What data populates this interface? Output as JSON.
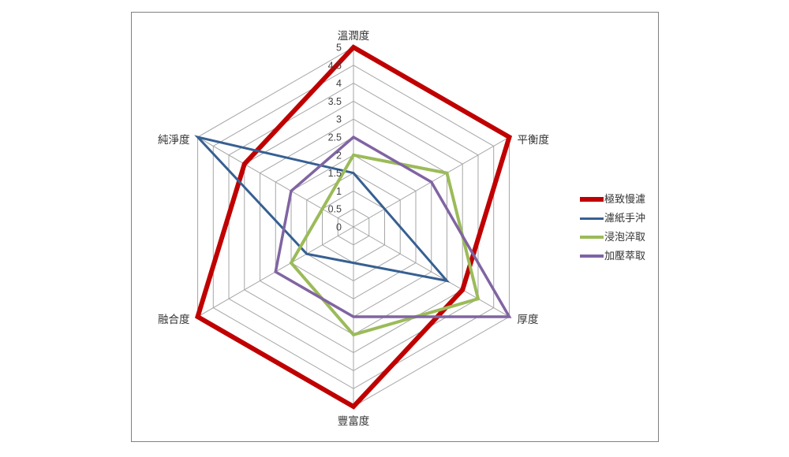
{
  "chart_data": {
    "type": "radar",
    "categories": [
      "溫潤度",
      "平衡度",
      "厚度",
      "豐富度",
      "融合度",
      "純淨度"
    ],
    "axis_min": 0,
    "axis_max": 5,
    "axis_step": 0.5,
    "tick_labels": [
      "0",
      "0.5",
      "1",
      "1.5",
      "2",
      "2.5",
      "3",
      "3.5",
      "4",
      "4.5",
      "5"
    ],
    "series": [
      {
        "name": "極致慢濾",
        "values": [
          5,
          5,
          3.5,
          5,
          5,
          3.5
        ],
        "color": "#C00000",
        "width": 6
      },
      {
        "name": "濾紙手沖",
        "values": [
          1.5,
          1,
          3,
          1,
          1.5,
          5
        ],
        "color": "#376092",
        "width": 3
      },
      {
        "name": "浸泡淬取",
        "values": [
          2,
          3,
          4,
          3,
          2,
          1
        ],
        "color": "#9BBB59",
        "width": 4
      },
      {
        "name": "加壓萃取",
        "values": [
          2.5,
          2.5,
          5,
          2.5,
          2.5,
          2
        ],
        "color": "#8064A2",
        "width": 3.5
      }
    ],
    "gridline_color": "#A6A6A6",
    "grid": true,
    "legend_position": "right",
    "title": ""
  },
  "frame": {
    "border_color": "#808080",
    "background": "#FFFFFF"
  }
}
